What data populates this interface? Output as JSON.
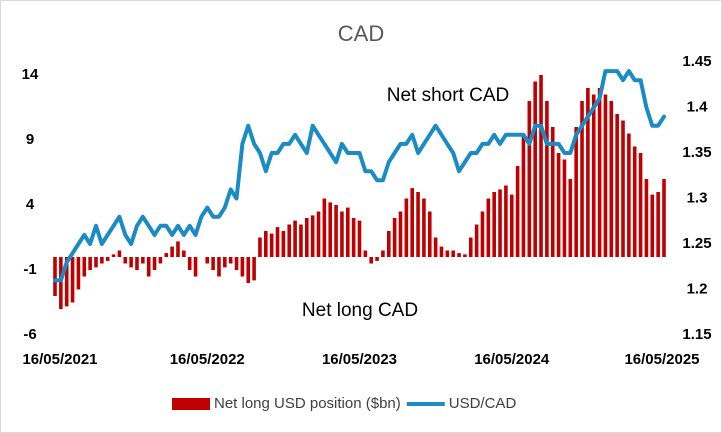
{
  "chart_data": {
    "type": "bar_line",
    "title": "CAD",
    "annotations": [
      "Net short CAD",
      "Net long CAD"
    ],
    "categories": [
      "16/05/2021",
      null,
      null,
      null,
      null,
      null,
      null,
      null,
      null,
      null,
      null,
      null,
      null,
      null,
      null,
      null,
      null,
      null,
      null,
      null,
      null,
      null,
      null,
      null,
      null,
      null,
      "16/05/2022",
      null,
      null,
      null,
      null,
      null,
      null,
      null,
      null,
      null,
      null,
      null,
      null,
      null,
      null,
      null,
      null,
      null,
      null,
      null,
      null,
      null,
      null,
      null,
      null,
      null,
      "16/05/2023",
      null,
      null,
      null,
      null,
      null,
      null,
      null,
      null,
      null,
      null,
      null,
      null,
      null,
      null,
      null,
      null,
      null,
      null,
      null,
      null,
      null,
      null,
      null,
      null,
      null,
      "16/05/2024",
      null,
      null,
      null,
      null,
      null,
      null,
      null,
      null,
      null,
      null,
      null,
      null,
      null,
      null,
      null,
      null,
      null,
      null,
      null,
      null,
      null,
      null,
      null,
      null,
      null,
      "16/05/2025"
    ],
    "series": [
      {
        "name": "Net long USD position ($bn)",
        "type": "bar",
        "axis": "y",
        "color": "#c00000",
        "values": [
          -3,
          -4,
          -3.8,
          -3.5,
          -2.5,
          -1.5,
          -1,
          -0.8,
          -0.5,
          -0.3,
          0.2,
          0.5,
          -0.5,
          -0.8,
          -1,
          -0.5,
          -1.5,
          -1,
          -0.5,
          0.3,
          0.8,
          1.2,
          0.5,
          -1,
          -1.5,
          0,
          -0.5,
          -1,
          -1.5,
          -0.8,
          -0.5,
          -1,
          -1.5,
          -2,
          -1.8,
          1.5,
          2,
          1.8,
          2.3,
          2,
          2.5,
          2.8,
          2.5,
          3,
          3.2,
          3.5,
          4.5,
          4.2,
          4,
          3.5,
          3.8,
          3,
          2.8,
          0.5,
          -0.5,
          -0.3,
          0.5,
          2,
          3,
          3.5,
          4.5,
          5.3,
          5,
          4.5,
          3.5,
          1.5,
          0.8,
          0.5,
          0.5,
          0.3,
          0.2,
          1.5,
          2.5,
          3.5,
          4.5,
          5,
          5.2,
          5.5,
          4.8,
          7,
          9.5,
          12,
          13.5,
          14,
          12,
          10,
          8,
          7.5,
          6,
          10,
          12,
          13,
          12.5,
          13,
          12.5,
          12,
          11,
          10.5,
          9.5,
          8.5,
          8,
          6,
          4.8,
          5,
          6
        ]
      },
      {
        "name": "USD/CAD",
        "type": "line",
        "axis": "y2",
        "color": "#1b8bc4",
        "values": [
          1.21,
          1.21,
          1.23,
          1.24,
          1.25,
          1.26,
          1.25,
          1.27,
          1.25,
          1.26,
          1.27,
          1.28,
          1.26,
          1.25,
          1.27,
          1.28,
          1.27,
          1.26,
          1.27,
          1.27,
          1.26,
          1.27,
          1.26,
          1.27,
          1.26,
          1.28,
          1.29,
          1.28,
          1.28,
          1.29,
          1.31,
          1.3,
          1.36,
          1.38,
          1.36,
          1.35,
          1.33,
          1.35,
          1.35,
          1.36,
          1.36,
          1.37,
          1.36,
          1.35,
          1.38,
          1.37,
          1.36,
          1.35,
          1.34,
          1.36,
          1.35,
          1.35,
          1.35,
          1.33,
          1.33,
          1.32,
          1.32,
          1.34,
          1.35,
          1.36,
          1.36,
          1.37,
          1.35,
          1.36,
          1.37,
          1.38,
          1.37,
          1.36,
          1.35,
          1.33,
          1.34,
          1.35,
          1.35,
          1.36,
          1.36,
          1.37,
          1.36,
          1.37,
          1.37,
          1.37,
          1.37,
          1.36,
          1.38,
          1.38,
          1.36,
          1.36,
          1.36,
          1.35,
          1.35,
          1.37,
          1.38,
          1.39,
          1.4,
          1.41,
          1.44,
          1.44,
          1.44,
          1.43,
          1.44,
          1.43,
          1.43,
          1.4,
          1.38,
          1.38,
          1.39
        ]
      }
    ],
    "ylim": [
      -6,
      15
    ],
    "yticks": [
      -6,
      -1,
      4,
      9,
      14
    ],
    "y2lim": [
      1.15,
      1.45
    ],
    "y2ticks": [
      1.15,
      1.2,
      1.25,
      1.3,
      1.35,
      1.4,
      1.45
    ],
    "legend": "bottom"
  }
}
